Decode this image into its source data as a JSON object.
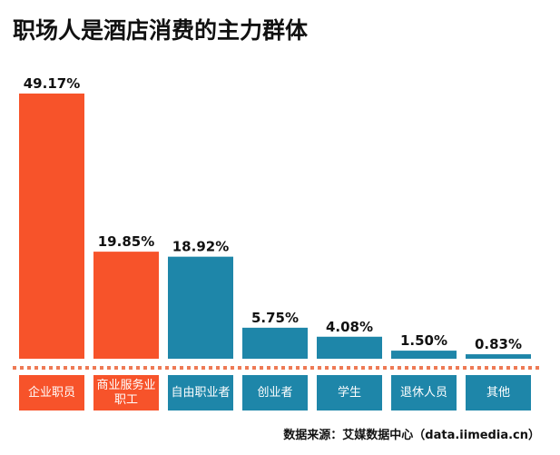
{
  "chart_data": {
    "type": "bar",
    "title": "职场人是酒店消费的主力群体",
    "categories": [
      "企业职员",
      "商业服务业职工",
      "自由职业者",
      "创业者",
      "学生",
      "退休人员",
      "其他"
    ],
    "values": [
      49.17,
      19.85,
      18.92,
      5.75,
      4.08,
      1.5,
      0.83
    ],
    "value_labels": [
      "49.17%",
      "19.85%",
      "18.92%",
      "5.75%",
      "4.08%",
      "1.50%",
      "0.83%"
    ],
    "colors": [
      "#f7532a",
      "#f7532a",
      "#1e86a9",
      "#1e86a9",
      "#1e86a9",
      "#1e86a9",
      "#1e86a9"
    ],
    "source": "数据来源：艾媒数据中心（data.iimedia.cn）"
  }
}
